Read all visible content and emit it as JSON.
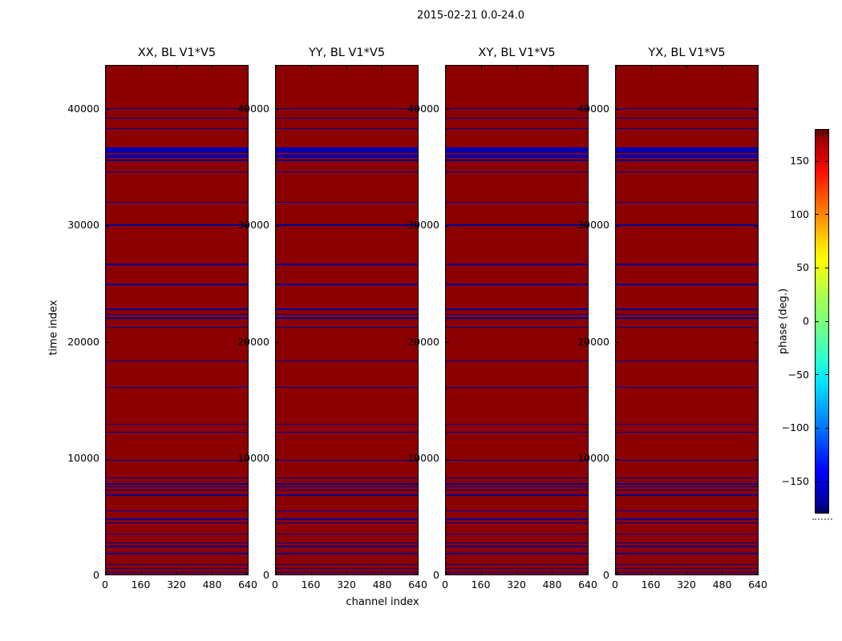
{
  "figure": {
    "suptitle": "2015-02-21 0.0-24.0",
    "xlabel": "channel index",
    "ylabel": "time index"
  },
  "chart_data": {
    "type": "heatmap",
    "title": "2015-02-21 0.0-24.0",
    "panels": [
      {
        "title": "XX, BL V1*V5"
      },
      {
        "title": "YY, BL V1*V5"
      },
      {
        "title": "XY, BL V1*V5"
      },
      {
        "title": "YX, BL V1*V5"
      }
    ],
    "xlabel": "channel index",
    "ylabel": "time index",
    "xlim": [
      0,
      640
    ],
    "xticks": [
      0,
      160,
      320,
      480,
      640
    ],
    "ylim": [
      0,
      43780
    ],
    "yticks": [
      0,
      10000,
      20000,
      30000,
      40000
    ],
    "grid": false,
    "background_value_deg": 180,
    "stripe_value_deg": -180,
    "colors": {
      "background": "#8b0000",
      "stripe": "#000099",
      "stripe_strong": "#0000b3"
    },
    "stripes": [
      {
        "t0": 40050,
        "t1": 40160
      },
      {
        "t0": 39230,
        "t1": 39340
      },
      {
        "t0": 38330,
        "t1": 38440
      },
      {
        "t0": 36290,
        "t1": 36790,
        "strong": true
      },
      {
        "t0": 35890,
        "t1": 36130,
        "strong": true
      },
      {
        "t0": 35640,
        "t1": 35740
      },
      {
        "t0": 34630,
        "t1": 34740
      },
      {
        "t0": 32010,
        "t1": 32120
      },
      {
        "t0": 30060,
        "t1": 30170
      },
      {
        "t0": 26680,
        "t1": 26790
      },
      {
        "t0": 24960,
        "t1": 25070
      },
      {
        "t0": 22820,
        "t1": 22930
      },
      {
        "t0": 22380,
        "t1": 22490
      },
      {
        "t0": 22070,
        "t1": 22180
      },
      {
        "t0": 21290,
        "t1": 21400
      },
      {
        "t0": 18390,
        "t1": 18500
      },
      {
        "t0": 16130,
        "t1": 16240
      },
      {
        "t0": 12980,
        "t1": 13090
      },
      {
        "t0": 12290,
        "t1": 12400
      },
      {
        "t0": 9870,
        "t1": 9980
      },
      {
        "t0": 8380,
        "t1": 8490
      },
      {
        "t0": 7860,
        "t1": 7970
      },
      {
        "t0": 7620,
        "t1": 7730
      },
      {
        "t0": 7350,
        "t1": 7460
      },
      {
        "t0": 6890,
        "t1": 7000
      },
      {
        "t0": 5530,
        "t1": 5640
      },
      {
        "t0": 4840,
        "t1": 4950
      },
      {
        "t0": 4530,
        "t1": 4640
      },
      {
        "t0": 3550,
        "t1": 3660
      },
      {
        "t0": 2790,
        "t1": 2900
      },
      {
        "t0": 2480,
        "t1": 2590
      },
      {
        "t0": 1870,
        "t1": 1980
      },
      {
        "t0": 950,
        "t1": 1060
      },
      {
        "t0": 600,
        "t1": 710
      },
      {
        "t0": 260,
        "t1": 370
      }
    ],
    "colorbar": {
      "label": "phase (deg.)",
      "lim": [
        -180,
        180
      ],
      "colormap": "jet",
      "ticks": [
        150,
        100,
        50,
        0,
        -50,
        -100,
        -150
      ],
      "tick_labels": [
        "150",
        "100",
        "50",
        "0",
        "−50",
        "−100",
        "−150"
      ]
    }
  }
}
